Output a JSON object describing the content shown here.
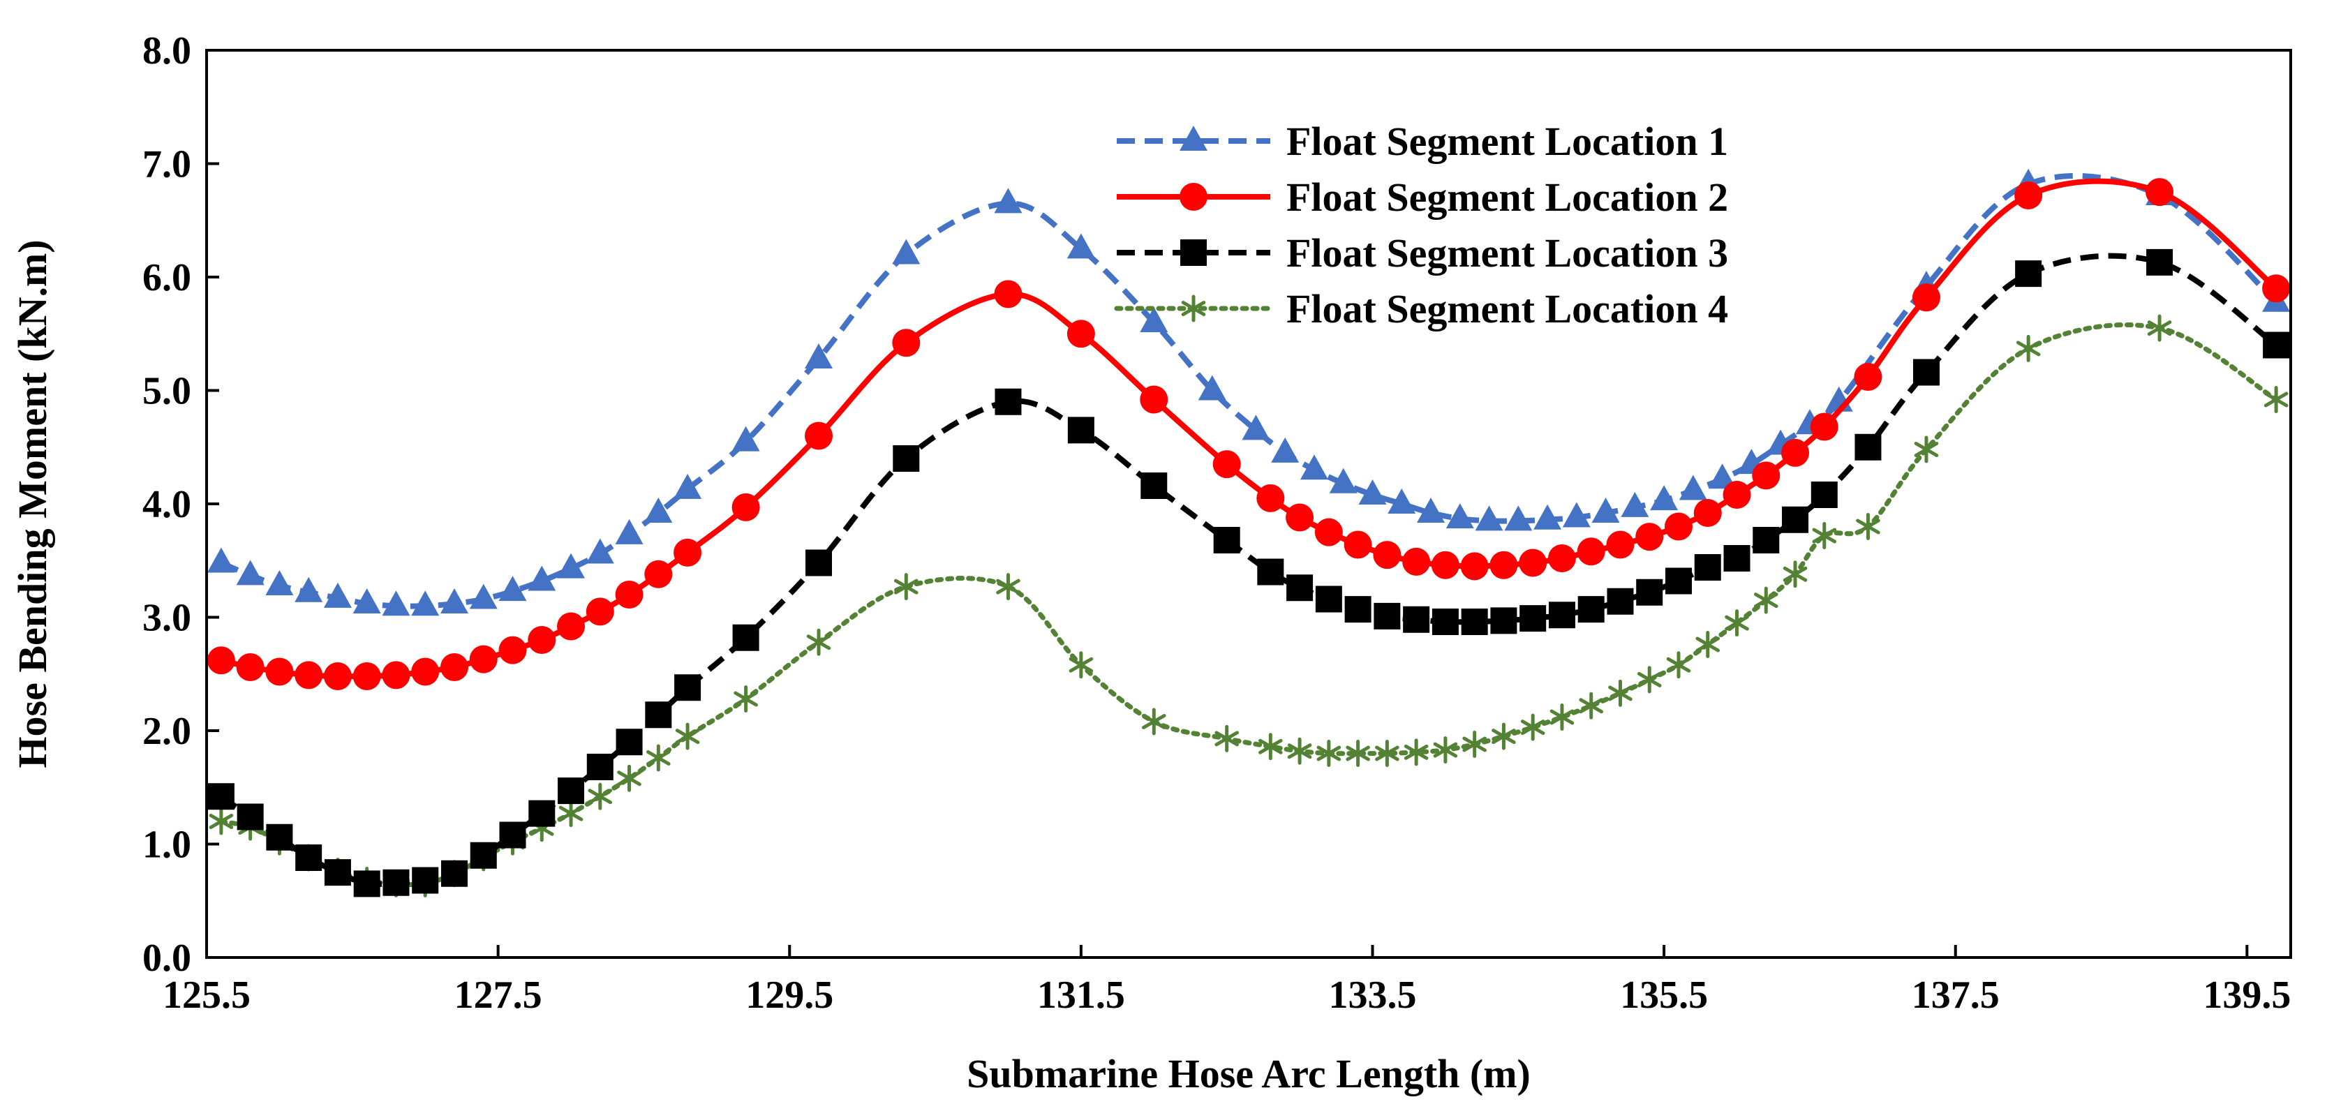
{
  "chart_data": {
    "type": "line",
    "title": "",
    "xlabel": "Submarine Hose Arc Length (m)",
    "ylabel": "Hose Bending Moment (kN.m)",
    "xlim": [
      125.5,
      139.8
    ],
    "ylim": [
      0.0,
      8.0
    ],
    "x_ticks": [
      125.5,
      127.5,
      129.5,
      131.5,
      133.5,
      135.5,
      137.5,
      139.5
    ],
    "x_tick_labels": [
      "125.5",
      "127.5",
      "129.5",
      "131.5",
      "133.5",
      "135.5",
      "137.5",
      "139.5"
    ],
    "y_ticks": [
      0,
      1,
      2,
      3,
      4,
      5,
      6,
      7,
      8
    ],
    "y_tick_labels": [
      "0.0",
      "1.0",
      "2.0",
      "3.0",
      "4.0",
      "5.0",
      "6.0",
      "7.0",
      "8.0"
    ],
    "grid": false,
    "legend_position": "top-center",
    "series": [
      {
        "name": "Float Segment Location 1",
        "color": "#4472C4",
        "line_style": "dashed",
        "marker": "triangle",
        "x": [
          125.6,
          125.8,
          126.0,
          126.2,
          126.4,
          126.6,
          126.8,
          127.0,
          127.2,
          127.4,
          127.6,
          127.8,
          128.0,
          128.2,
          128.4,
          128.6,
          128.8,
          129.2,
          129.7,
          130.3,
          131.0,
          131.5,
          132.0,
          132.4,
          132.7,
          132.9,
          133.1,
          133.3,
          133.5,
          133.7,
          133.9,
          134.1,
          134.3,
          134.5,
          134.7,
          134.9,
          135.1,
          135.3,
          135.5,
          135.7,
          135.9,
          136.1,
          136.3,
          136.5,
          136.7,
          137.3,
          138.0,
          138.9,
          139.7
        ],
        "y": [
          3.48,
          3.37,
          3.28,
          3.22,
          3.17,
          3.12,
          3.1,
          3.1,
          3.12,
          3.16,
          3.23,
          3.32,
          3.43,
          3.56,
          3.73,
          3.92,
          4.13,
          4.55,
          5.28,
          6.2,
          6.65,
          6.25,
          5.6,
          5.0,
          4.65,
          4.45,
          4.3,
          4.18,
          4.08,
          4.0,
          3.92,
          3.87,
          3.85,
          3.85,
          3.86,
          3.88,
          3.92,
          3.97,
          4.03,
          4.12,
          4.22,
          4.35,
          4.52,
          4.7,
          4.9,
          5.92,
          6.82,
          6.72,
          5.78
        ]
      },
      {
        "name": "Float Segment Location 2",
        "color": "#FF0000",
        "line_style": "solid",
        "marker": "circle",
        "x": [
          125.6,
          125.8,
          126.0,
          126.2,
          126.4,
          126.6,
          126.8,
          127.0,
          127.2,
          127.4,
          127.6,
          127.8,
          128.0,
          128.2,
          128.4,
          128.6,
          128.8,
          129.2,
          129.7,
          130.3,
          131.0,
          131.5,
          132.0,
          132.5,
          132.8,
          133.0,
          133.2,
          133.4,
          133.6,
          133.8,
          134.0,
          134.2,
          134.4,
          134.6,
          134.8,
          135.0,
          135.2,
          135.4,
          135.6,
          135.8,
          136.0,
          136.2,
          136.4,
          136.6,
          136.9,
          137.3,
          138.0,
          138.9,
          139.7
        ],
        "y": [
          2.62,
          2.56,
          2.52,
          2.49,
          2.48,
          2.48,
          2.49,
          2.52,
          2.56,
          2.63,
          2.71,
          2.8,
          2.92,
          3.05,
          3.2,
          3.38,
          3.57,
          3.97,
          4.6,
          5.42,
          5.85,
          5.5,
          4.92,
          4.35,
          4.05,
          3.88,
          3.75,
          3.64,
          3.55,
          3.49,
          3.46,
          3.45,
          3.46,
          3.48,
          3.52,
          3.58,
          3.64,
          3.71,
          3.8,
          3.92,
          4.08,
          4.25,
          4.45,
          4.68,
          5.12,
          5.82,
          6.72,
          6.75,
          5.9
        ]
      },
      {
        "name": "Float Segment Location 3",
        "color": "#000000",
        "line_style": "dashed",
        "marker": "square",
        "x": [
          125.6,
          125.8,
          126.0,
          126.2,
          126.4,
          126.6,
          126.8,
          127.0,
          127.2,
          127.4,
          127.6,
          127.8,
          128.0,
          128.2,
          128.4,
          128.6,
          128.8,
          129.2,
          129.7,
          130.3,
          131.0,
          131.5,
          132.0,
          132.5,
          132.8,
          133.0,
          133.2,
          133.4,
          133.6,
          133.8,
          134.0,
          134.2,
          134.4,
          134.6,
          134.8,
          135.0,
          135.2,
          135.4,
          135.6,
          135.8,
          136.0,
          136.2,
          136.4,
          136.6,
          136.9,
          137.3,
          138.0,
          138.9,
          139.7
        ],
        "y": [
          1.42,
          1.24,
          1.06,
          0.88,
          0.75,
          0.65,
          0.66,
          0.68,
          0.74,
          0.9,
          1.08,
          1.27,
          1.47,
          1.68,
          1.9,
          2.14,
          2.38,
          2.82,
          3.48,
          4.4,
          4.9,
          4.65,
          4.16,
          3.68,
          3.4,
          3.26,
          3.16,
          3.07,
          3.01,
          2.98,
          2.96,
          2.96,
          2.97,
          2.99,
          3.02,
          3.07,
          3.14,
          3.22,
          3.32,
          3.44,
          3.52,
          3.68,
          3.86,
          4.08,
          4.5,
          5.16,
          6.03,
          6.13,
          5.4
        ]
      },
      {
        "name": "Float Segment Location 4",
        "color": "#548235",
        "line_style": "dotted",
        "marker": "asterisk",
        "x": [
          125.6,
          125.8,
          126.0,
          126.2,
          126.4,
          126.6,
          126.8,
          127.0,
          127.2,
          127.4,
          127.6,
          127.8,
          128.0,
          128.2,
          128.4,
          128.6,
          128.8,
          129.2,
          129.7,
          130.3,
          131.0,
          131.5,
          132.0,
          132.5,
          132.8,
          133.0,
          133.2,
          133.4,
          133.6,
          133.8,
          134.0,
          134.2,
          134.4,
          134.6,
          134.8,
          135.0,
          135.2,
          135.4,
          135.6,
          135.8,
          136.0,
          136.2,
          136.4,
          136.6,
          136.9,
          137.3,
          138.0,
          138.9,
          139.7
        ],
        "y": [
          1.2,
          1.15,
          1.02,
          0.88,
          0.76,
          0.68,
          0.65,
          0.65,
          0.74,
          0.88,
          1.02,
          1.14,
          1.27,
          1.42,
          1.58,
          1.76,
          1.95,
          2.28,
          2.78,
          3.27,
          3.27,
          2.58,
          2.08,
          1.93,
          1.86,
          1.82,
          1.8,
          1.8,
          1.8,
          1.81,
          1.83,
          1.88,
          1.95,
          2.03,
          2.12,
          2.22,
          2.33,
          2.45,
          2.58,
          2.76,
          2.95,
          3.15,
          3.38,
          3.72,
          3.8,
          4.48,
          5.37,
          5.55,
          4.92
        ]
      }
    ]
  }
}
